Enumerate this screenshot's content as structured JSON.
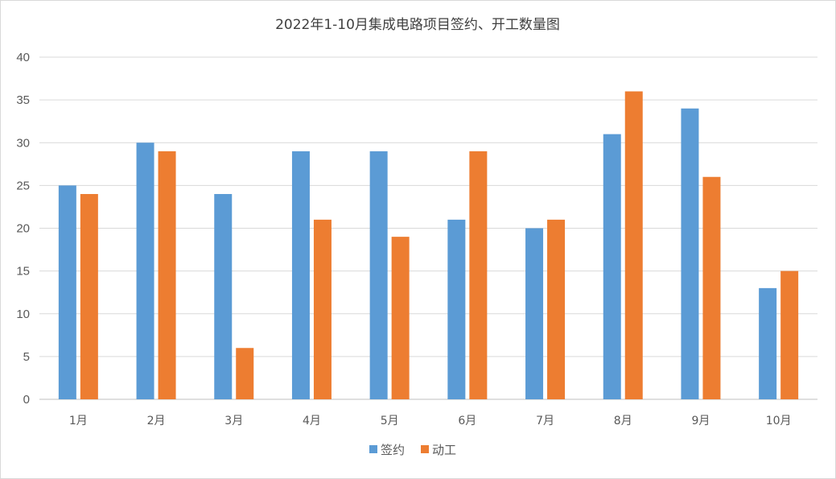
{
  "colors": {
    "series_1": "#5B9BD5",
    "series_2": "#ED7D31"
  },
  "chart_data": {
    "type": "bar",
    "title": "2022年1-10月集成电路项目签约、开工数量图",
    "xlabel": "",
    "ylabel": "",
    "ylim": [
      0,
      40
    ],
    "yticks": [
      0,
      5,
      10,
      15,
      20,
      25,
      30,
      35,
      40
    ],
    "grid": true,
    "legend_position": "bottom",
    "categories": [
      "1月",
      "2月",
      "3月",
      "4月",
      "5月",
      "6月",
      "7月",
      "8月",
      "9月",
      "10月"
    ],
    "series": [
      {
        "name": "签约",
        "values": [
          25,
          30,
          24,
          29,
          29,
          21,
          20,
          31,
          34,
          13
        ]
      },
      {
        "name": "动工",
        "values": [
          24,
          29,
          6,
          21,
          19,
          29,
          21,
          36,
          26,
          15
        ]
      }
    ]
  }
}
